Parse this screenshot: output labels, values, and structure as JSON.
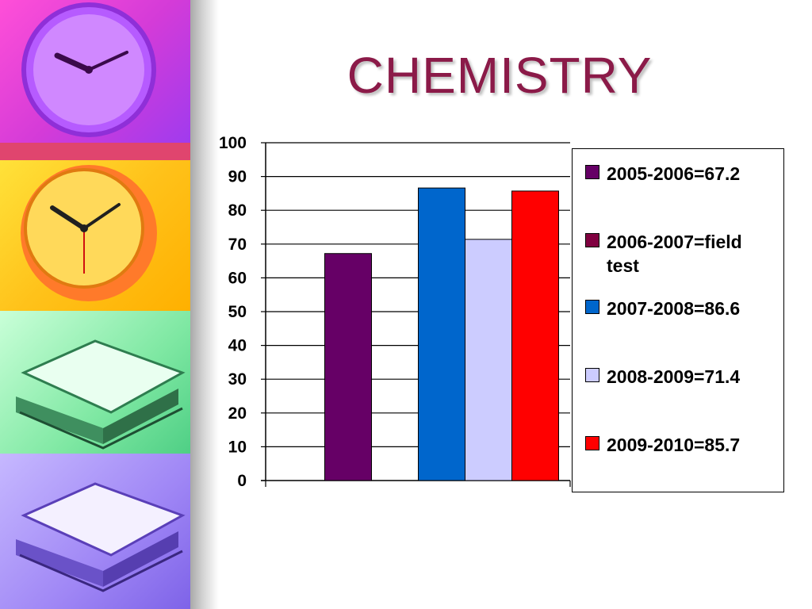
{
  "slide": {
    "title": "CHEMISTRY",
    "decor_icons": [
      "clock-icon",
      "clock-icon",
      "open-book-icon",
      "open-book-icon"
    ]
  },
  "chart_data": {
    "type": "bar",
    "ylim": [
      0,
      100
    ],
    "ytick_step": 10,
    "grid": true,
    "legend_position": "right",
    "series": [
      {
        "name": "2005-2006=67.2",
        "value": 67.2,
        "color": "#660066",
        "legend": [
          "2005-2006=67.2"
        ]
      },
      {
        "name": "2006-2007=field test",
        "value": null,
        "color": "#800040",
        "legend": [
          "2006-2007=field",
          "test"
        ]
      },
      {
        "name": "2007-2008=86.6",
        "value": 86.6,
        "color": "#0066cc",
        "legend": [
          "2007-2008=86.6"
        ]
      },
      {
        "name": "2008-2009=71.4",
        "value": 71.4,
        "color": "#ccccff",
        "legend": [
          "2008-2009=71.4"
        ]
      },
      {
        "name": "2009-2010=85.7",
        "value": 85.7,
        "color": "#ff0000",
        "legend": [
          "2009-2010=85.7"
        ]
      }
    ]
  }
}
